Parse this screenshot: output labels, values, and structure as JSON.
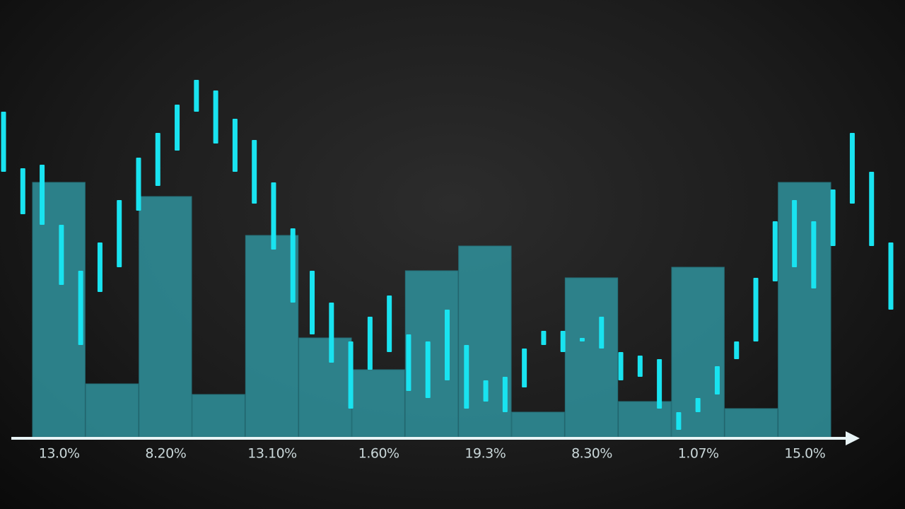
{
  "chart_data": [
    {
      "type": "bar",
      "categories": [
        "13.0%",
        null,
        "8.20%",
        null,
        "13.10%",
        null,
        "1.60%",
        null,
        "19.3%",
        null,
        "8.30%",
        null,
        "1.07%",
        null,
        "15.0%"
      ],
      "values": [
        72,
        15,
        68,
        12,
        57,
        28,
        19,
        47,
        54,
        7,
        45,
        10,
        48,
        8,
        72
      ],
      "color": "#2f8c96",
      "ylim": [
        0,
        110
      ]
    },
    {
      "type": "candlestick",
      "color": "#19e3f0",
      "low": [
        75,
        63,
        60,
        43,
        26,
        41,
        48,
        64,
        71,
        81,
        92,
        83,
        75,
        66,
        53,
        38,
        29,
        21,
        8,
        19,
        24,
        13,
        11,
        16,
        8,
        10,
        7,
        14,
        26,
        24,
        27,
        25,
        16,
        17,
        8,
        2,
        7,
        12,
        22,
        27,
        44,
        48,
        42,
        54,
        66,
        54,
        36
      ],
      "high": [
        92,
        76,
        77,
        60,
        47,
        55,
        67,
        79,
        86,
        94,
        101,
        98,
        90,
        84,
        72,
        59,
        47,
        38,
        27,
        34,
        40,
        29,
        27,
        36,
        26,
        16,
        17,
        25,
        30,
        30,
        28,
        34,
        24,
        23,
        22,
        7,
        11,
        20,
        27,
        45,
        61,
        67,
        61,
        70,
        86,
        75,
        55
      ],
      "ylim": [
        0,
        110
      ]
    }
  ]
}
